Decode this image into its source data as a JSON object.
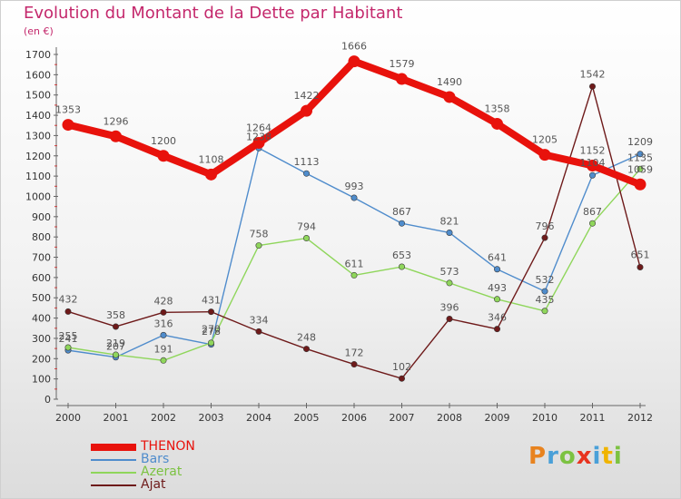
{
  "header": {
    "title": "Evolution du Montant de la Dette par Habitant",
    "unit": "(en €)"
  },
  "logo": {
    "text": "Proxiti",
    "letter_colors": [
      "#e8831f",
      "#4aa0d8",
      "#7cc242",
      "#e8331f",
      "#4aa0d8",
      "#f0b400",
      "#7cc242"
    ]
  },
  "chart_data": {
    "type": "line",
    "title": "Evolution du Montant de la Dette par Habitant",
    "subtitle": "(en €)",
    "x": [
      "2000",
      "2001",
      "2002",
      "2003",
      "2004",
      "2005",
      "2006",
      "2007",
      "2008",
      "2009",
      "2010",
      "2011",
      "2012"
    ],
    "ylim": [
      0,
      1700
    ],
    "yticks": [
      0,
      100,
      200,
      300,
      400,
      500,
      600,
      700,
      800,
      900,
      1000,
      1100,
      1200,
      1300,
      1400,
      1500,
      1600,
      1700
    ],
    "grid": false,
    "legend_position": "bottom-left",
    "series": [
      {
        "name": "THENON",
        "color": "#e8120c",
        "emphasis": true,
        "values": [
          1353,
          1296,
          1200,
          1108,
          1264,
          1422,
          1666,
          1579,
          1490,
          1358,
          1205,
          1152,
          1059
        ]
      },
      {
        "name": "Bars",
        "color": "#4f8ccc",
        "values": [
          241,
          207,
          316,
          270,
          1238,
          1113,
          993,
          867,
          821,
          641,
          532,
          1104,
          1209
        ]
      },
      {
        "name": "Azerat",
        "color": "#8fd65b",
        "values": [
          255,
          219,
          191,
          278,
          758,
          794,
          611,
          653,
          573,
          493,
          435,
          867,
          1135
        ]
      },
      {
        "name": "Ajat",
        "color": "#6e1a1a",
        "values": [
          432,
          358,
          428,
          431,
          334,
          248,
          172,
          102,
          396,
          346,
          796,
          1542,
          651
        ]
      }
    ],
    "label_offsets": {
      "THENON": [
        [
          0,
          -13
        ],
        [
          0,
          -13
        ],
        [
          0,
          -13
        ],
        [
          0,
          -13
        ],
        [
          0,
          -13
        ],
        [
          0,
          -13
        ],
        [
          0,
          -13
        ],
        [
          0,
          -13
        ],
        [
          0,
          -13
        ],
        [
          0,
          -13
        ],
        [
          0,
          -13
        ],
        [
          0,
          -13
        ],
        [
          0,
          -13
        ]
      ],
      "Bars": [
        [
          0,
          -9
        ],
        [
          0,
          -8
        ],
        [
          0,
          -9
        ],
        [
          0,
          -13
        ],
        [
          0,
          -9
        ],
        [
          0,
          -9
        ],
        [
          0,
          -9
        ],
        [
          0,
          -9
        ],
        [
          0,
          -9
        ],
        [
          0,
          -9
        ],
        [
          0,
          -9
        ],
        [
          0,
          -10
        ],
        [
          0,
          -10
        ]
      ],
      "Azerat": [
        [
          0,
          -9
        ],
        [
          0,
          -9
        ],
        [
          0,
          -9
        ],
        [
          0,
          -9
        ],
        [
          0,
          -9
        ],
        [
          0,
          -9
        ],
        [
          0,
          -9
        ],
        [
          0,
          -9
        ],
        [
          0,
          -9
        ],
        [
          0,
          -9
        ],
        [
          0,
          -9
        ],
        [
          0,
          -9
        ],
        [
          0,
          -9
        ]
      ],
      "Ajat": [
        [
          0,
          -10
        ],
        [
          0,
          -9
        ],
        [
          0,
          -9
        ],
        [
          0,
          -9
        ],
        [
          0,
          -9
        ],
        [
          0,
          -9
        ],
        [
          0,
          -9
        ],
        [
          0,
          -9
        ],
        [
          0,
          -9
        ],
        [
          0,
          -9
        ],
        [
          0,
          -9
        ],
        [
          0,
          -10
        ],
        [
          0,
          -10
        ]
      ]
    }
  }
}
